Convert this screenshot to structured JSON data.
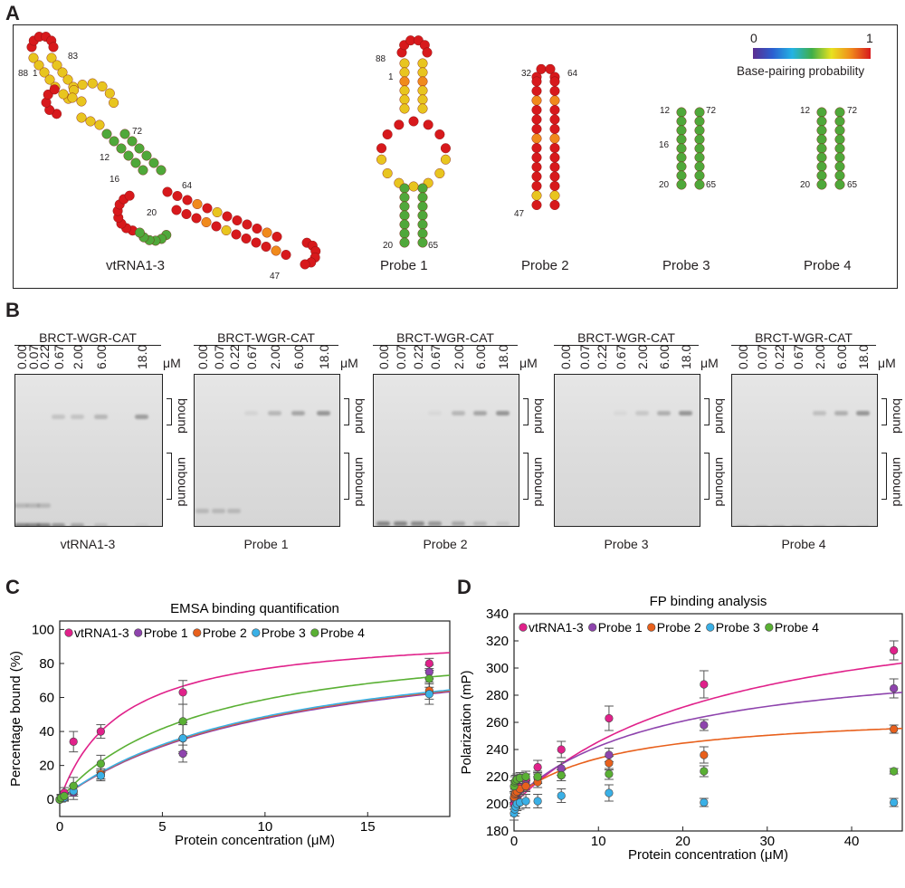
{
  "panels": {
    "a": "A",
    "b": "B",
    "c": "C",
    "d": "D"
  },
  "structures": {
    "names": [
      "vtRNA1-3",
      "Probe 1",
      "Probe 2",
      "Probe 3",
      "Probe 4"
    ],
    "numbers": {
      "vt": [
        "88",
        "1",
        "83",
        "72",
        "12",
        "16",
        "64",
        "20",
        "47"
      ],
      "p1": [
        "88",
        "1",
        "20",
        "65"
      ],
      "p2": [
        "32",
        "64",
        "47"
      ],
      "p3": [
        "12",
        "72",
        "16",
        "20",
        "65"
      ],
      "p4": [
        "12",
        "72",
        "20",
        "65"
      ]
    },
    "scale": {
      "min": "0",
      "max": "1",
      "label": "Base-pairing probability",
      "colors": [
        "#5b2d91",
        "#2b5fd0",
        "#24b3e3",
        "#3fae49",
        "#e8e21f",
        "#f08a1c",
        "#d7191c"
      ]
    }
  },
  "emsa_gels": {
    "protein": "BRCT-WGR-CAT",
    "concentrations": [
      "0.00",
      "0.07",
      "0.22",
      "0.67",
      "2.00",
      "6.00",
      "18.0"
    ],
    "unit": "μM",
    "bound_label": "bound",
    "unbound_label": "unbound",
    "gel_names": [
      "vtRNA1-3",
      "Probe 1",
      "Probe 2",
      "Probe 3",
      "Probe 4"
    ]
  },
  "chart_data": [
    {
      "type": "scatter",
      "title": "EMSA binding quantification",
      "xlabel": "Protein concentration (μM)",
      "ylabel": "Percentage bound (%)",
      "xlim": [
        0,
        19
      ],
      "ylim": [
        -10,
        105
      ],
      "xticks": [
        0,
        5,
        10,
        15
      ],
      "yticks": [
        0,
        20,
        40,
        60,
        80,
        100
      ],
      "x": [
        0,
        0.07,
        0.22,
        0.67,
        2.0,
        6.0,
        18.0
      ],
      "series": [
        {
          "name": "vtRNA1-3",
          "color": "#e0218a",
          "values": [
            0,
            1,
            4,
            34,
            40,
            63,
            80
          ],
          "errors": [
            0,
            2,
            3,
            6,
            4,
            7,
            3
          ],
          "fit": {
            "max": 100,
            "kd": 3.0
          }
        },
        {
          "name": "Probe 1",
          "color": "#8e44ad",
          "values": [
            0,
            0.5,
            2,
            4,
            14,
            27,
            75
          ],
          "errors": [
            0,
            2,
            2,
            4,
            3,
            5,
            4
          ],
          "fit": {
            "max": 100,
            "kd": 11.0
          }
        },
        {
          "name": "Probe 2",
          "color": "#e8601c",
          "values": [
            0,
            0.5,
            1.5,
            5,
            15,
            36,
            64
          ],
          "errors": [
            0,
            2,
            2,
            3,
            3,
            9,
            5
          ],
          "fit": {
            "max": 100,
            "kd": 10.7
          }
        },
        {
          "name": "Probe 3",
          "color": "#3ab0e6",
          "values": [
            0,
            0.5,
            1,
            5,
            14,
            36,
            62
          ],
          "errors": [
            0,
            2,
            2,
            3,
            2,
            8,
            6
          ],
          "fit": {
            "max": 100,
            "kd": 10.5
          }
        },
        {
          "name": "Probe 4",
          "color": "#5ab034",
          "values": [
            0,
            1,
            2,
            8,
            21,
            46,
            71
          ],
          "errors": [
            0,
            2,
            2,
            5,
            5,
            10,
            5
          ],
          "fit": {
            "max": 100,
            "kd": 7.0
          }
        }
      ]
    },
    {
      "type": "scatter",
      "title": "FP binding analysis",
      "xlabel": "Protein concentration (μM)",
      "ylabel": "Polarization (mP)",
      "xlim": [
        0,
        46
      ],
      "ylim": [
        180,
        340
      ],
      "xticks": [
        0,
        10,
        20,
        30,
        40
      ],
      "yticks": [
        180,
        200,
        220,
        240,
        260,
        280,
        300,
        320,
        340
      ],
      "x": [
        0,
        0.09,
        0.18,
        0.35,
        0.7,
        1.4,
        2.8,
        5.6,
        11.25,
        22.5,
        45
      ],
      "series": [
        {
          "name": "vtRNA1-3",
          "color": "#e0218a",
          "values": [
            200,
            203,
            205,
            208,
            212,
            218,
            227,
            240,
            263,
            288,
            313
          ],
          "errors": [
            4,
            4,
            4,
            4,
            4,
            4,
            5,
            6,
            9,
            10,
            7
          ],
          "fit": {
            "base": 200,
            "max": 160,
            "kd": 25
          }
        },
        {
          "name": "Probe 1",
          "color": "#8e44ad",
          "values": [
            204,
            206,
            207,
            208,
            210,
            214,
            219,
            226,
            236,
            258,
            285
          ],
          "errors": [
            4,
            4,
            4,
            4,
            4,
            4,
            4,
            5,
            5,
            4,
            7
          ],
          "fit": {
            "base": 203,
            "max": 110,
            "kd": 18
          }
        },
        {
          "name": "Probe 2",
          "color": "#e8601c",
          "values": [
            205,
            207,
            208,
            209,
            211,
            213,
            216,
            221,
            230,
            236,
            255
          ],
          "errors": [
            4,
            4,
            4,
            4,
            4,
            4,
            4,
            4,
            5,
            6,
            3
          ],
          "fit": {
            "base": 204,
            "max": 65,
            "kd": 12
          }
        },
        {
          "name": "Probe 3",
          "color": "#3ab0e6",
          "values": [
            193,
            196,
            198,
            200,
            201,
            202,
            202,
            206,
            208,
            201,
            201
          ],
          "errors": [
            5,
            5,
            5,
            5,
            5,
            5,
            5,
            5,
            6,
            3,
            3
          ],
          "fit": null
        },
        {
          "name": "Probe 4",
          "color": "#5ab034",
          "values": [
            213,
            216,
            217,
            218,
            219,
            220,
            220,
            221,
            222,
            224,
            224
          ],
          "errors": [
            4,
            4,
            4,
            4,
            4,
            4,
            4,
            4,
            4,
            4,
            2
          ],
          "fit": null
        }
      ]
    }
  ]
}
